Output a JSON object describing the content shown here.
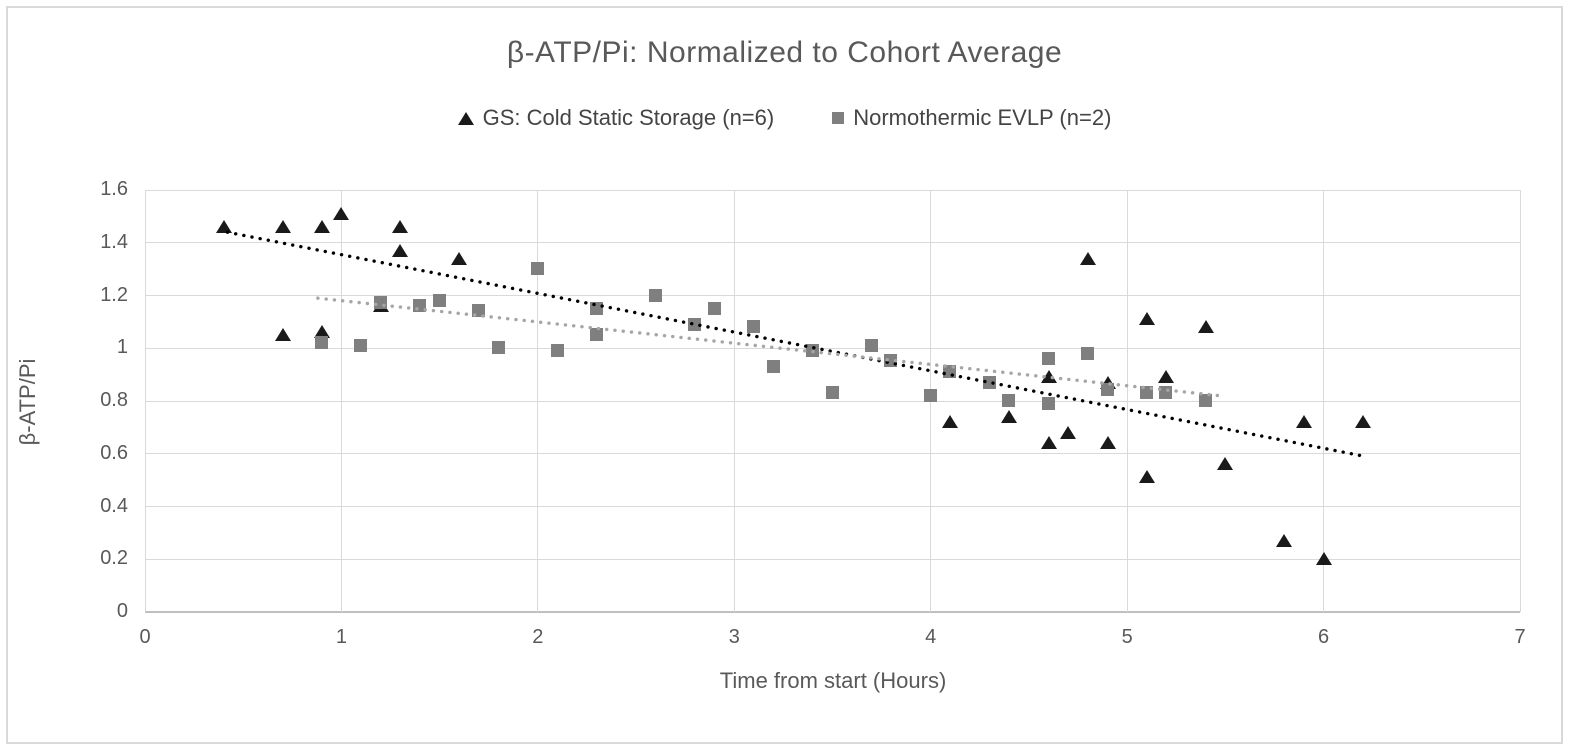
{
  "title": "β-ATP/Pi: Normalized to Cohort Average",
  "legend": [
    {
      "label": "GS: Cold Static Storage (n=6)",
      "marker": "triangle",
      "color": "#1a1a1a"
    },
    {
      "label": "Normothermic EVLP (n=2)",
      "marker": "square",
      "color": "#7f7f7f"
    }
  ],
  "colors": {
    "text": "#595959",
    "gridline": "#d9d9d9",
    "axis_line": "#bfbfbf",
    "triangle": "#1a1a1a",
    "square": "#7f7f7f",
    "trend_gs": "#000000",
    "trend_evlp": "#a6a6a6",
    "border": "#d9d9d9",
    "background": "#ffffff"
  },
  "chart_data": {
    "type": "scatter",
    "title": "β-ATP/Pi: Normalized to Cohort Average",
    "xlabel": "Time from start (Hours)",
    "ylabel": "β-ATP/Pi",
    "xlim": [
      0,
      7
    ],
    "ylim": [
      0,
      1.6
    ],
    "x_ticks": [
      0,
      1,
      2,
      3,
      4,
      5,
      6,
      7
    ],
    "x_tick_labels": [
      "0",
      "1",
      "2",
      "3",
      "4",
      "5",
      "6",
      "7"
    ],
    "y_ticks": [
      0,
      0.2,
      0.4,
      0.6,
      0.8,
      1.0,
      1.2,
      1.4,
      1.6
    ],
    "y_tick_labels": [
      "0",
      "0.2",
      "0.4",
      "0.6",
      "0.8",
      "1",
      "1.2",
      "1.4",
      "1.6"
    ],
    "grid": true,
    "legend_position": "top-center",
    "series": [
      {
        "name": "GS: Cold Static Storage (n=6)",
        "marker": "triangle",
        "color": "#1a1a1a",
        "points": [
          [
            0.4,
            1.46
          ],
          [
            0.7,
            1.46
          ],
          [
            0.7,
            1.05
          ],
          [
            0.9,
            1.46
          ],
          [
            0.9,
            1.06
          ],
          [
            1.0,
            1.51
          ],
          [
            1.2,
            1.16
          ],
          [
            1.3,
            1.46
          ],
          [
            1.3,
            1.37
          ],
          [
            1.6,
            1.34
          ],
          [
            4.1,
            0.72
          ],
          [
            4.4,
            0.74
          ],
          [
            4.6,
            0.89
          ],
          [
            4.6,
            0.64
          ],
          [
            4.7,
            0.68
          ],
          [
            4.8,
            1.34
          ],
          [
            4.9,
            0.87
          ],
          [
            4.9,
            0.64
          ],
          [
            5.1,
            1.11
          ],
          [
            5.1,
            0.51
          ],
          [
            5.2,
            0.89
          ],
          [
            5.4,
            1.08
          ],
          [
            5.5,
            0.56
          ],
          [
            5.8,
            0.27
          ],
          [
            5.9,
            0.72
          ],
          [
            6.0,
            0.2
          ],
          [
            6.2,
            0.72
          ]
        ]
      },
      {
        "name": "Normothermic EVLP (n=2)",
        "marker": "square",
        "color": "#7f7f7f",
        "points": [
          [
            0.9,
            1.02
          ],
          [
            1.1,
            1.01
          ],
          [
            1.2,
            1.17
          ],
          [
            1.4,
            1.16
          ],
          [
            1.5,
            1.18
          ],
          [
            1.7,
            1.14
          ],
          [
            1.8,
            1.0
          ],
          [
            2.0,
            1.3
          ],
          [
            2.1,
            0.99
          ],
          [
            2.3,
            1.15
          ],
          [
            2.3,
            1.05
          ],
          [
            2.6,
            1.2
          ],
          [
            2.8,
            1.09
          ],
          [
            2.9,
            1.15
          ],
          [
            3.1,
            1.08
          ],
          [
            3.2,
            0.93
          ],
          [
            3.4,
            0.99
          ],
          [
            3.5,
            0.83
          ],
          [
            3.7,
            1.01
          ],
          [
            3.8,
            0.95
          ],
          [
            4.0,
            0.82
          ],
          [
            4.1,
            0.91
          ],
          [
            4.3,
            0.87
          ],
          [
            4.4,
            0.8
          ],
          [
            4.6,
            0.96
          ],
          [
            4.6,
            0.79
          ],
          [
            4.8,
            0.98
          ],
          [
            4.9,
            0.84
          ],
          [
            5.1,
            0.83
          ],
          [
            5.2,
            0.83
          ],
          [
            5.4,
            0.8
          ]
        ]
      }
    ],
    "trendlines": [
      {
        "series": "GS: Cold Static Storage (n=6)",
        "style": "dotted",
        "color": "#000000",
        "from": [
          0.42,
          1.44
        ],
        "to": [
          6.21,
          0.59
        ]
      },
      {
        "series": "Normothermic EVLP (n=2)",
        "style": "dotted",
        "color": "#a6a6a6",
        "from": [
          0.88,
          1.19
        ],
        "to": [
          5.47,
          0.82
        ]
      }
    ]
  }
}
